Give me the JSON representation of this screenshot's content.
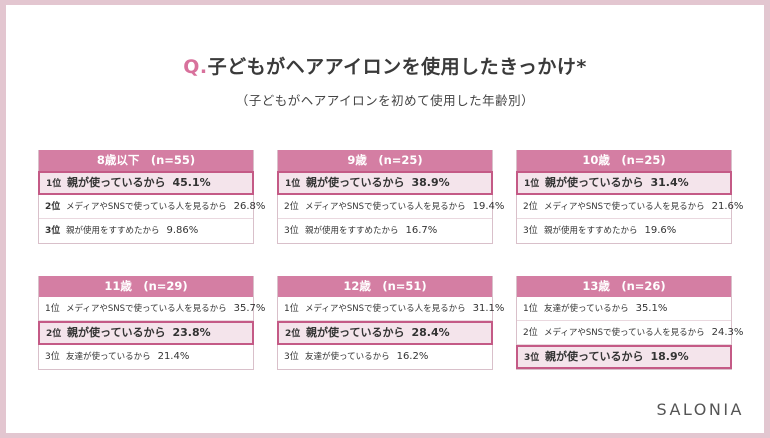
{
  "title": {
    "q": "Q.",
    "text": "子どもがヘアアイロンを使用したきっかけ*"
  },
  "subtitle": "（子どもがヘアアイロンを初めて使用した年齢別）",
  "cards": [
    {
      "header": "8歳以下　(n=55)",
      "rows": [
        {
          "rank": "1位",
          "text": "親が使っているから",
          "pct": "45.1%"
        },
        {
          "rank": "2位",
          "text": "メディアやSNSで使っている人を見るから",
          "pct": "26.8%"
        },
        {
          "rank": "3位",
          "text": "親が使用をすすめたから",
          "pct": "9.86%"
        }
      ]
    },
    {
      "header": "9歳　(n=25)",
      "rows": [
        {
          "rank": "1位",
          "text": "親が使っているから",
          "pct": "38.9%"
        },
        {
          "rank": "2位",
          "text": "メディアやSNSで使っている人を見るから",
          "pct": "19.4%"
        },
        {
          "rank": "3位",
          "text": "親が使用をすすめたから",
          "pct": "16.7%"
        }
      ]
    },
    {
      "header": "10歳　(n=25)",
      "rows": [
        {
          "rank": "1位",
          "text": "親が使っているから",
          "pct": "31.4%"
        },
        {
          "rank": "2位",
          "text": "メディアやSNSで使っている人を見るから",
          "pct": "21.6%"
        },
        {
          "rank": "3位",
          "text": "親が使用をすすめたから",
          "pct": "19.6%"
        }
      ]
    },
    {
      "header": "11歳　(n=29)",
      "rows": [
        {
          "rank": "1位",
          "text": "メディアやSNSで使っている人を見るから",
          "pct": "35.7%"
        },
        {
          "rank": "2位",
          "text": "親が使っているから",
          "pct": "23.8%"
        },
        {
          "rank": "3位",
          "text": "友達が使っているから",
          "pct": "21.4%"
        }
      ]
    },
    {
      "header": "12歳　(n=51)",
      "rows": [
        {
          "rank": "1位",
          "text": "メディアやSNSで使っている人を見るから",
          "pct": "31.1%"
        },
        {
          "rank": "2位",
          "text": "親が使っているから",
          "pct": "28.4%"
        },
        {
          "rank": "3位",
          "text": "友達が使っているから",
          "pct": "16.2%"
        }
      ]
    },
    {
      "header": "13歳　(n=26)",
      "rows": [
        {
          "rank": "1位",
          "text": "友達が使っているから",
          "pct": "35.1%"
        },
        {
          "rank": "2位",
          "text": "メディアやSNSで使っている人を見るから",
          "pct": "24.3%"
        },
        {
          "rank": "3位",
          "text": "親が使っているから",
          "pct": "18.9%"
        }
      ]
    }
  ],
  "logo": "SALONIA"
}
